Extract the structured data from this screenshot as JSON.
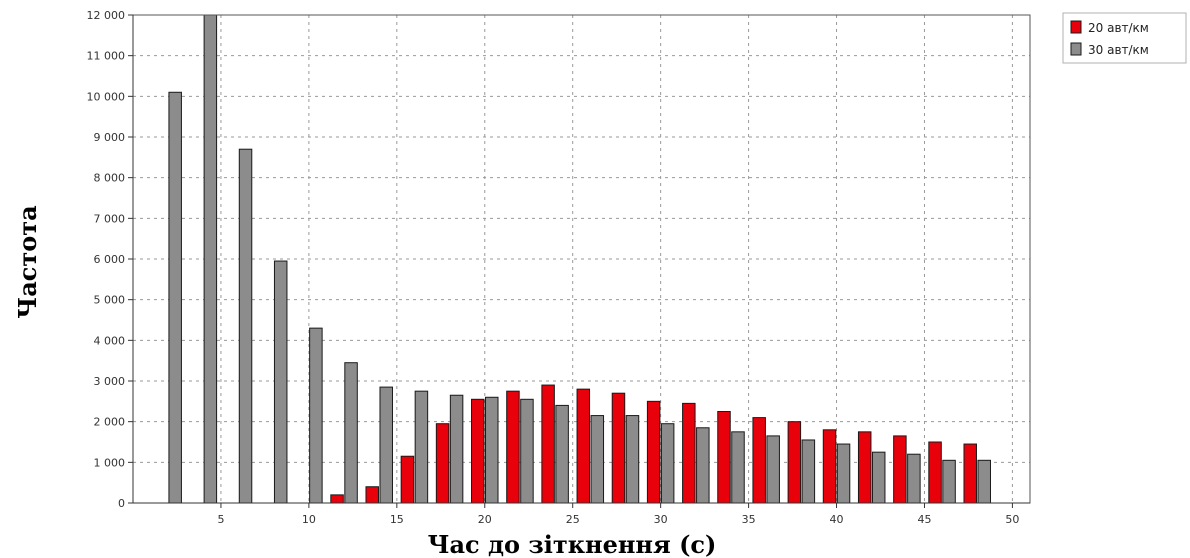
{
  "chart_data": {
    "type": "bar",
    "xlabel": "Час до зіткнення (с)",
    "ylabel": "Частота",
    "x": [
      2,
      4,
      6,
      8,
      10,
      12,
      14,
      16,
      18,
      20,
      22,
      24,
      26,
      28,
      30,
      32,
      34,
      36,
      38,
      40,
      42,
      44,
      46,
      48
    ],
    "xlim": [
      0,
      51
    ],
    "ylim": [
      0,
      12000
    ],
    "x_ticks": [
      5,
      10,
      15,
      20,
      25,
      30,
      35,
      40,
      45,
      50
    ],
    "y_ticks": [
      0,
      1000,
      2000,
      3000,
      4000,
      5000,
      6000,
      7000,
      8000,
      9000,
      10000,
      11000,
      12000
    ],
    "x_tick_labels": [
      "5",
      "10",
      "15",
      "20",
      "25",
      "30",
      "35",
      "40",
      "45",
      "50"
    ],
    "y_tick_labels": [
      "0",
      "1 000",
      "2 000",
      "3 000",
      "4 000",
      "5 000",
      "6 000",
      "7 000",
      "8 000",
      "9 000",
      "10 000",
      "11 000",
      "12 000"
    ],
    "grid": true,
    "legend_position": "top-right",
    "series": [
      {
        "name": "20 авт/км",
        "color": "#e8000b",
        "values": [
          0,
          0,
          0,
          0,
          0,
          200,
          400,
          1150,
          1950,
          2550,
          2750,
          2900,
          2800,
          2700,
          2500,
          2450,
          2250,
          2100,
          2000,
          1800,
          1750,
          1650,
          1500,
          1450
        ]
      },
      {
        "name": "30 авт/км",
        "color": "#8c8c8c",
        "values": [
          10100,
          12400,
          8700,
          5950,
          4300,
          3450,
          2850,
          2750,
          2650,
          2600,
          2550,
          2400,
          2150,
          2150,
          1950,
          1850,
          1750,
          1650,
          1550,
          1450,
          1250,
          1200,
          1050,
          1050
        ]
      }
    ]
  }
}
